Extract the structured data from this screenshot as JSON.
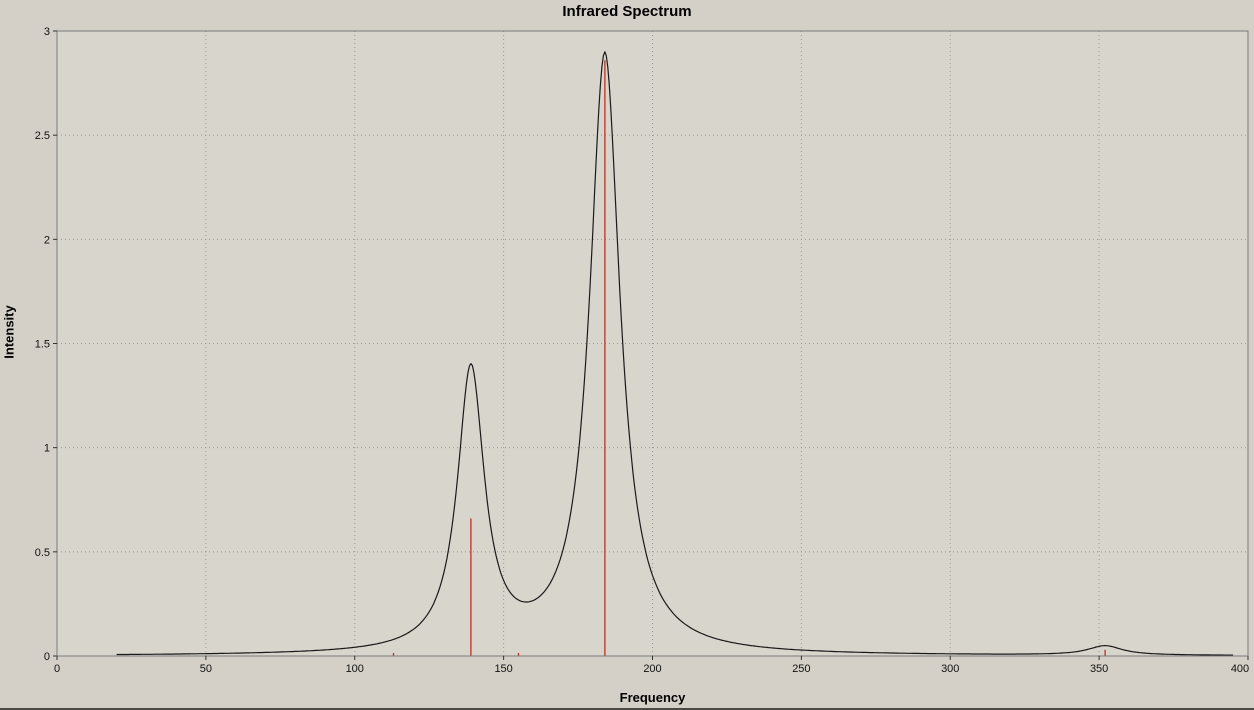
{
  "window": {
    "title": "Infrared Spectrum"
  },
  "colors": {
    "background": "#d4d0c8",
    "plot_background": "#d8d5cd",
    "grid": "#999999",
    "axis": "#7a7a7a",
    "tick": "#333333",
    "text": "#000000"
  },
  "chart_data": {
    "type": "line",
    "title": "Infrared Spectrum",
    "xlabel": "Frequency",
    "ylabel": "Intensity",
    "xlim": [
      0,
      400
    ],
    "ylim": [
      0,
      3
    ],
    "x_ticks": [
      0,
      50,
      100,
      150,
      200,
      250,
      300,
      350,
      400
    ],
    "y_ticks": [
      0,
      0.5,
      1,
      1.5,
      2,
      2.5,
      3
    ],
    "grid": "dotted",
    "legend": "none",
    "series": [
      {
        "name": "broadened-spectrum-curve",
        "style": "curve",
        "color": "#1a1a1a",
        "x_range": [
          20,
          395
        ],
        "peaks": [
          {
            "x": 139,
            "height": 1.35,
            "hwhm": 5.5
          },
          {
            "x": 184,
            "height": 2.88,
            "hwhm": 6.2
          },
          {
            "x": 352,
            "height": 0.045,
            "hwhm": 7
          }
        ]
      },
      {
        "name": "stick-spectrum",
        "style": "sticks",
        "color": "#bb3322",
        "points": [
          {
            "x": 113,
            "y": 0.015
          },
          {
            "x": 139,
            "y": 0.66
          },
          {
            "x": 155,
            "y": 0.015
          },
          {
            "x": 184,
            "y": 2.86
          },
          {
            "x": 352,
            "y": 0.03
          }
        ]
      }
    ]
  }
}
